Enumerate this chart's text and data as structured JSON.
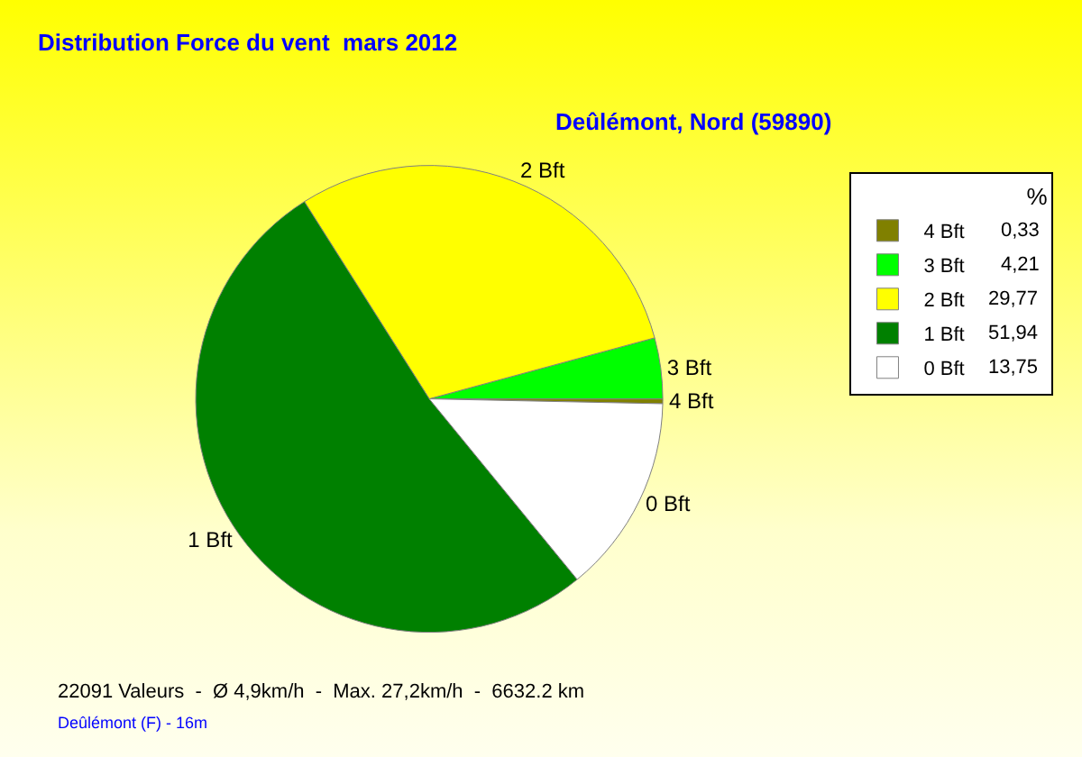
{
  "chart_data": {
    "type": "pie",
    "title": "Distribution Force du vent  mars 2012",
    "subtitle": "Deûlémont, Nord (59890)",
    "categories": [
      "4 Bft",
      "3 Bft",
      "2 Bft",
      "1 Bft",
      "0 Bft"
    ],
    "values": [
      0.33,
      4.21,
      29.77,
      51.94,
      13.75
    ],
    "value_labels": [
      "0,33",
      "4,21",
      "29,77",
      "51,94",
      "13,75"
    ],
    "colors": [
      "#808000",
      "#00ff00",
      "#ffff00",
      "#008000",
      "#ffffff"
    ],
    "legend": "top right",
    "legend_title": "%",
    "annotations": [
      "22091 Valeurs  -  Ø 4,9km/h  -  Max. 27,2km/h  -  6632.2 km",
      "Deûlémont (F) - 16m"
    ]
  }
}
